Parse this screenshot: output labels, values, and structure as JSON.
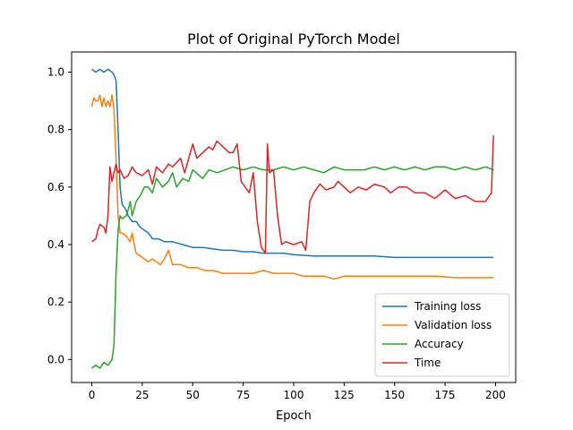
{
  "chart_data": {
    "type": "line",
    "title": "Plot of Original PyTorch Model",
    "xlabel": "Epoch",
    "ylabel": "",
    "xlim": [
      -10,
      210
    ],
    "ylim": [
      -0.08,
      1.07
    ],
    "xticks": [
      0,
      25,
      50,
      75,
      100,
      125,
      150,
      175,
      200
    ],
    "yticks": [
      0.0,
      0.2,
      0.4,
      0.6,
      0.8,
      1.0
    ],
    "xtick_labels": [
      "0",
      "25",
      "50",
      "75",
      "100",
      "125",
      "150",
      "175",
      "200"
    ],
    "ytick_labels": [
      "0.0",
      "0.2",
      "0.4",
      "0.6",
      "0.8",
      "1.0"
    ],
    "grid": false,
    "legend_position": "lower-right",
    "series": [
      {
        "name": "Training loss",
        "color": "#1f77b4",
        "points": [
          [
            0,
            1.01
          ],
          [
            2,
            1.0
          ],
          [
            4,
            1.01
          ],
          [
            6,
            1.0
          ],
          [
            8,
            1.01
          ],
          [
            10,
            1.0
          ],
          [
            11,
            0.99
          ],
          [
            12,
            0.97
          ],
          [
            13,
            0.8
          ],
          [
            14,
            0.6
          ],
          [
            15,
            0.54
          ],
          [
            17,
            0.52
          ],
          [
            18,
            0.5
          ],
          [
            20,
            0.48
          ],
          [
            22,
            0.48
          ],
          [
            24,
            0.46
          ],
          [
            26,
            0.45
          ],
          [
            28,
            0.44
          ],
          [
            30,
            0.42
          ],
          [
            33,
            0.42
          ],
          [
            36,
            0.41
          ],
          [
            40,
            0.41
          ],
          [
            45,
            0.4
          ],
          [
            50,
            0.39
          ],
          [
            55,
            0.39
          ],
          [
            60,
            0.385
          ],
          [
            65,
            0.38
          ],
          [
            70,
            0.38
          ],
          [
            75,
            0.375
          ],
          [
            80,
            0.375
          ],
          [
            85,
            0.37
          ],
          [
            90,
            0.37
          ],
          [
            95,
            0.37
          ],
          [
            100,
            0.365
          ],
          [
            110,
            0.36
          ],
          [
            120,
            0.36
          ],
          [
            130,
            0.36
          ],
          [
            140,
            0.36
          ],
          [
            150,
            0.355
          ],
          [
            160,
            0.355
          ],
          [
            170,
            0.355
          ],
          [
            180,
            0.355
          ],
          [
            190,
            0.355
          ],
          [
            199,
            0.355
          ]
        ]
      },
      {
        "name": "Validation loss",
        "color": "#ff7f0e",
        "points": [
          [
            0,
            0.88
          ],
          [
            1,
            0.91
          ],
          [
            2,
            0.9
          ],
          [
            3,
            0.9
          ],
          [
            4,
            0.92
          ],
          [
            5,
            0.88
          ],
          [
            6,
            0.91
          ],
          [
            7,
            0.88
          ],
          [
            8,
            0.9
          ],
          [
            9,
            0.88
          ],
          [
            10,
            0.92
          ],
          [
            11,
            0.87
          ],
          [
            12,
            0.7
          ],
          [
            13,
            0.5
          ],
          [
            14,
            0.44
          ],
          [
            15,
            0.44
          ],
          [
            17,
            0.43
          ],
          [
            18,
            0.42
          ],
          [
            19,
            0.41
          ],
          [
            20,
            0.44
          ],
          [
            21,
            0.4
          ],
          [
            22,
            0.37
          ],
          [
            24,
            0.36
          ],
          [
            26,
            0.35
          ],
          [
            28,
            0.34
          ],
          [
            30,
            0.35
          ],
          [
            32,
            0.34
          ],
          [
            34,
            0.33
          ],
          [
            36,
            0.35
          ],
          [
            38,
            0.38
          ],
          [
            40,
            0.33
          ],
          [
            44,
            0.33
          ],
          [
            48,
            0.32
          ],
          [
            52,
            0.32
          ],
          [
            56,
            0.31
          ],
          [
            60,
            0.31
          ],
          [
            65,
            0.3
          ],
          [
            70,
            0.3
          ],
          [
            75,
            0.3
          ],
          [
            80,
            0.3
          ],
          [
            85,
            0.31
          ],
          [
            90,
            0.3
          ],
          [
            95,
            0.3
          ],
          [
            100,
            0.3
          ],
          [
            105,
            0.29
          ],
          [
            110,
            0.29
          ],
          [
            115,
            0.29
          ],
          [
            120,
            0.28
          ],
          [
            125,
            0.29
          ],
          [
            130,
            0.29
          ],
          [
            140,
            0.29
          ],
          [
            150,
            0.29
          ],
          [
            160,
            0.29
          ],
          [
            170,
            0.29
          ],
          [
            180,
            0.285
          ],
          [
            190,
            0.285
          ],
          [
            199,
            0.285
          ]
        ]
      },
      {
        "name": "Accuracy",
        "color": "#2ca02c",
        "points": [
          [
            0,
            -0.03
          ],
          [
            2,
            -0.02
          ],
          [
            4,
            -0.03
          ],
          [
            6,
            -0.01
          ],
          [
            8,
            -0.02
          ],
          [
            10,
            0.0
          ],
          [
            11,
            0.05
          ],
          [
            12,
            0.3
          ],
          [
            13,
            0.45
          ],
          [
            14,
            0.5
          ],
          [
            15,
            0.49
          ],
          [
            17,
            0.5
          ],
          [
            18,
            0.52
          ],
          [
            19,
            0.55
          ],
          [
            20,
            0.5
          ],
          [
            22,
            0.55
          ],
          [
            24,
            0.57
          ],
          [
            26,
            0.6
          ],
          [
            28,
            0.6
          ],
          [
            30,
            0.58
          ],
          [
            32,
            0.63
          ],
          [
            35,
            0.6
          ],
          [
            38,
            0.62
          ],
          [
            40,
            0.65
          ],
          [
            42,
            0.6
          ],
          [
            45,
            0.63
          ],
          [
            48,
            0.62
          ],
          [
            50,
            0.66
          ],
          [
            55,
            0.63
          ],
          [
            58,
            0.66
          ],
          [
            62,
            0.65
          ],
          [
            66,
            0.66
          ],
          [
            70,
            0.67
          ],
          [
            75,
            0.66
          ],
          [
            80,
            0.67
          ],
          [
            85,
            0.66
          ],
          [
            90,
            0.66
          ],
          [
            95,
            0.67
          ],
          [
            100,
            0.66
          ],
          [
            105,
            0.67
          ],
          [
            110,
            0.66
          ],
          [
            115,
            0.65
          ],
          [
            120,
            0.67
          ],
          [
            125,
            0.66
          ],
          [
            130,
            0.66
          ],
          [
            135,
            0.66
          ],
          [
            140,
            0.67
          ],
          [
            145,
            0.66
          ],
          [
            150,
            0.67
          ],
          [
            155,
            0.66
          ],
          [
            160,
            0.67
          ],
          [
            165,
            0.66
          ],
          [
            170,
            0.67
          ],
          [
            175,
            0.67
          ],
          [
            180,
            0.66
          ],
          [
            185,
            0.67
          ],
          [
            190,
            0.66
          ],
          [
            195,
            0.67
          ],
          [
            199,
            0.66
          ]
        ]
      },
      {
        "name": "Time",
        "color": "#d62728",
        "points": [
          [
            0,
            0.41
          ],
          [
            2,
            0.42
          ],
          [
            3,
            0.45
          ],
          [
            4,
            0.47
          ],
          [
            6,
            0.46
          ],
          [
            7,
            0.44
          ],
          [
            8,
            0.5
          ],
          [
            9,
            0.67
          ],
          [
            10,
            0.62
          ],
          [
            11,
            0.65
          ],
          [
            12,
            0.68
          ],
          [
            13,
            0.65
          ],
          [
            14,
            0.66
          ],
          [
            16,
            0.63
          ],
          [
            18,
            0.64
          ],
          [
            20,
            0.67
          ],
          [
            22,
            0.65
          ],
          [
            25,
            0.64
          ],
          [
            28,
            0.66
          ],
          [
            30,
            0.61
          ],
          [
            32,
            0.67
          ],
          [
            35,
            0.65
          ],
          [
            38,
            0.68
          ],
          [
            40,
            0.67
          ],
          [
            44,
            0.7
          ],
          [
            46,
            0.65
          ],
          [
            48,
            0.7
          ],
          [
            50,
            0.75
          ],
          [
            52,
            0.7
          ],
          [
            55,
            0.72
          ],
          [
            58,
            0.74
          ],
          [
            60,
            0.73
          ],
          [
            62,
            0.76
          ],
          [
            65,
            0.74
          ],
          [
            68,
            0.72
          ],
          [
            70,
            0.72
          ],
          [
            72,
            0.75
          ],
          [
            74,
            0.62
          ],
          [
            76,
            0.6
          ],
          [
            78,
            0.58
          ],
          [
            80,
            0.65
          ],
          [
            82,
            0.48
          ],
          [
            84,
            0.39
          ],
          [
            86,
            0.37
          ],
          [
            87,
            0.75
          ],
          [
            88,
            0.65
          ],
          [
            90,
            0.66
          ],
          [
            92,
            0.5
          ],
          [
            94,
            0.4
          ],
          [
            96,
            0.41
          ],
          [
            100,
            0.4
          ],
          [
            104,
            0.41
          ],
          [
            106,
            0.38
          ],
          [
            108,
            0.55
          ],
          [
            110,
            0.58
          ],
          [
            113,
            0.61
          ],
          [
            116,
            0.59
          ],
          [
            120,
            0.6
          ],
          [
            122,
            0.62
          ],
          [
            125,
            0.6
          ],
          [
            128,
            0.58
          ],
          [
            132,
            0.6
          ],
          [
            136,
            0.59
          ],
          [
            140,
            0.61
          ],
          [
            145,
            0.6
          ],
          [
            148,
            0.58
          ],
          [
            152,
            0.6
          ],
          [
            156,
            0.6
          ],
          [
            160,
            0.58
          ],
          [
            165,
            0.58
          ],
          [
            170,
            0.56
          ],
          [
            175,
            0.59
          ],
          [
            180,
            0.56
          ],
          [
            185,
            0.57
          ],
          [
            190,
            0.55
          ],
          [
            195,
            0.55
          ],
          [
            198,
            0.58
          ],
          [
            199,
            0.78
          ]
        ]
      }
    ]
  }
}
